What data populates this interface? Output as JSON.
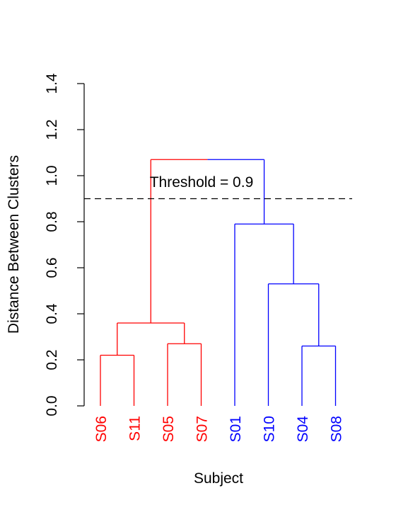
{
  "chart_data": {
    "type": "dendrogram",
    "title": "",
    "xlabel": "Subject",
    "ylabel": "Distance Between Clusters",
    "ylim": [
      0,
      1.4
    ],
    "yticks": [
      "0.0",
      "0.2",
      "0.4",
      "0.6",
      "0.8",
      "1.0",
      "1.2",
      "1.4"
    ],
    "leaves": [
      "S06",
      "S11",
      "S05",
      "S07",
      "S01",
      "S10",
      "S04",
      "S08"
    ],
    "leaf_colors": [
      "#ff0000",
      "#ff0000",
      "#ff0000",
      "#ff0000",
      "#0000ff",
      "#0000ff",
      "#0000ff",
      "#0000ff"
    ],
    "merges": [
      {
        "left": "S06",
        "right": "S11",
        "height": 0.22
      },
      {
        "left": "S05",
        "right": "S07",
        "height": 0.27
      },
      {
        "left": "S06,S11",
        "right": "S05,S07",
        "height": 0.36
      },
      {
        "left": "S04",
        "right": "S08",
        "height": 0.26
      },
      {
        "left": "S10",
        "right": "S04,S08",
        "height": 0.53
      },
      {
        "left": "S01",
        "right": "S10,S04,S08",
        "height": 0.79
      },
      {
        "left": "S06,S11,S05,S07",
        "right": "S01,S10,S04,S08",
        "height": 1.07
      }
    ],
    "threshold": {
      "value": 0.9,
      "label": "Threshold = 0.9",
      "style": "dashed"
    },
    "colors": {
      "cluster_1": "#ff0000",
      "cluster_2": "#0000ff",
      "axis": "#000000"
    },
    "grid": false
  }
}
